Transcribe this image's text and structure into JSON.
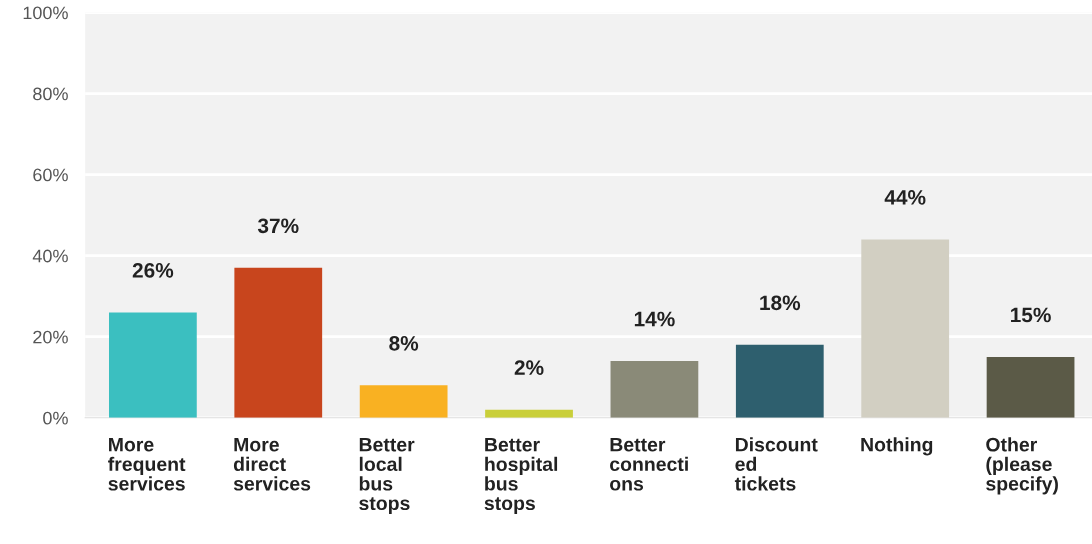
{
  "chart_data": {
    "type": "bar",
    "categories": [
      "More\nfrequent\nservices",
      "More\ndirect\nservices",
      "Better\nlocal\nbus\nstops",
      "Better\nhospital\nbus\nstops",
      "Better\nconnecti\nons",
      "Discount\ned\ntickets",
      "Nothing",
      "Other\n(please\nspecify)"
    ],
    "values": [
      26,
      37,
      8,
      2,
      14,
      18,
      44,
      15
    ],
    "colors": [
      "#3bbfc0",
      "#c8451d",
      "#f9b122",
      "#c9cf3a",
      "#8a8a78",
      "#2e5f6e",
      "#d2cfc2",
      "#5b5a47"
    ],
    "value_labels": [
      "26%",
      "37%",
      "8%",
      "2%",
      "14%",
      "18%",
      "44%",
      "15%"
    ],
    "ylim": [
      0,
      100
    ],
    "yticks": [
      {
        "value": 0,
        "label": "0%"
      },
      {
        "value": 20,
        "label": "20%"
      },
      {
        "value": 40,
        "label": "40%"
      },
      {
        "value": 60,
        "label": "60%"
      },
      {
        "value": 80,
        "label": "80%"
      },
      {
        "value": 100,
        "label": "100%"
      }
    ],
    "grid": "y"
  }
}
